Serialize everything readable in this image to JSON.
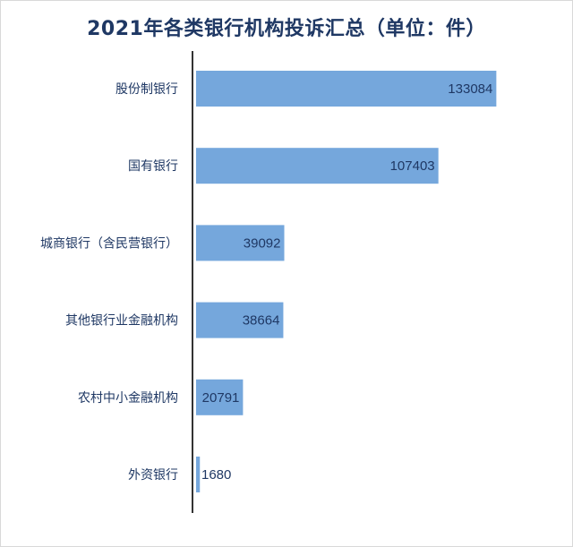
{
  "chart_data": {
    "type": "bar",
    "orientation": "horizontal",
    "title": "2021年各类银行机构投诉汇总（单位：件）",
    "categories": [
      "股份制银行",
      "国有银行",
      "城商银行（含民营银行）",
      "其他银行业金融机构",
      "农村中小金融机构",
      "外资银行"
    ],
    "values": [
      133084,
      107403,
      39092,
      38664,
      20791,
      1680
    ],
    "xlim": [
      0,
      150000
    ],
    "grid": false,
    "legend": "none",
    "bar_color": "#75a7dc",
    "axis_color": "#333333",
    "text_color": "#1f3864"
  }
}
